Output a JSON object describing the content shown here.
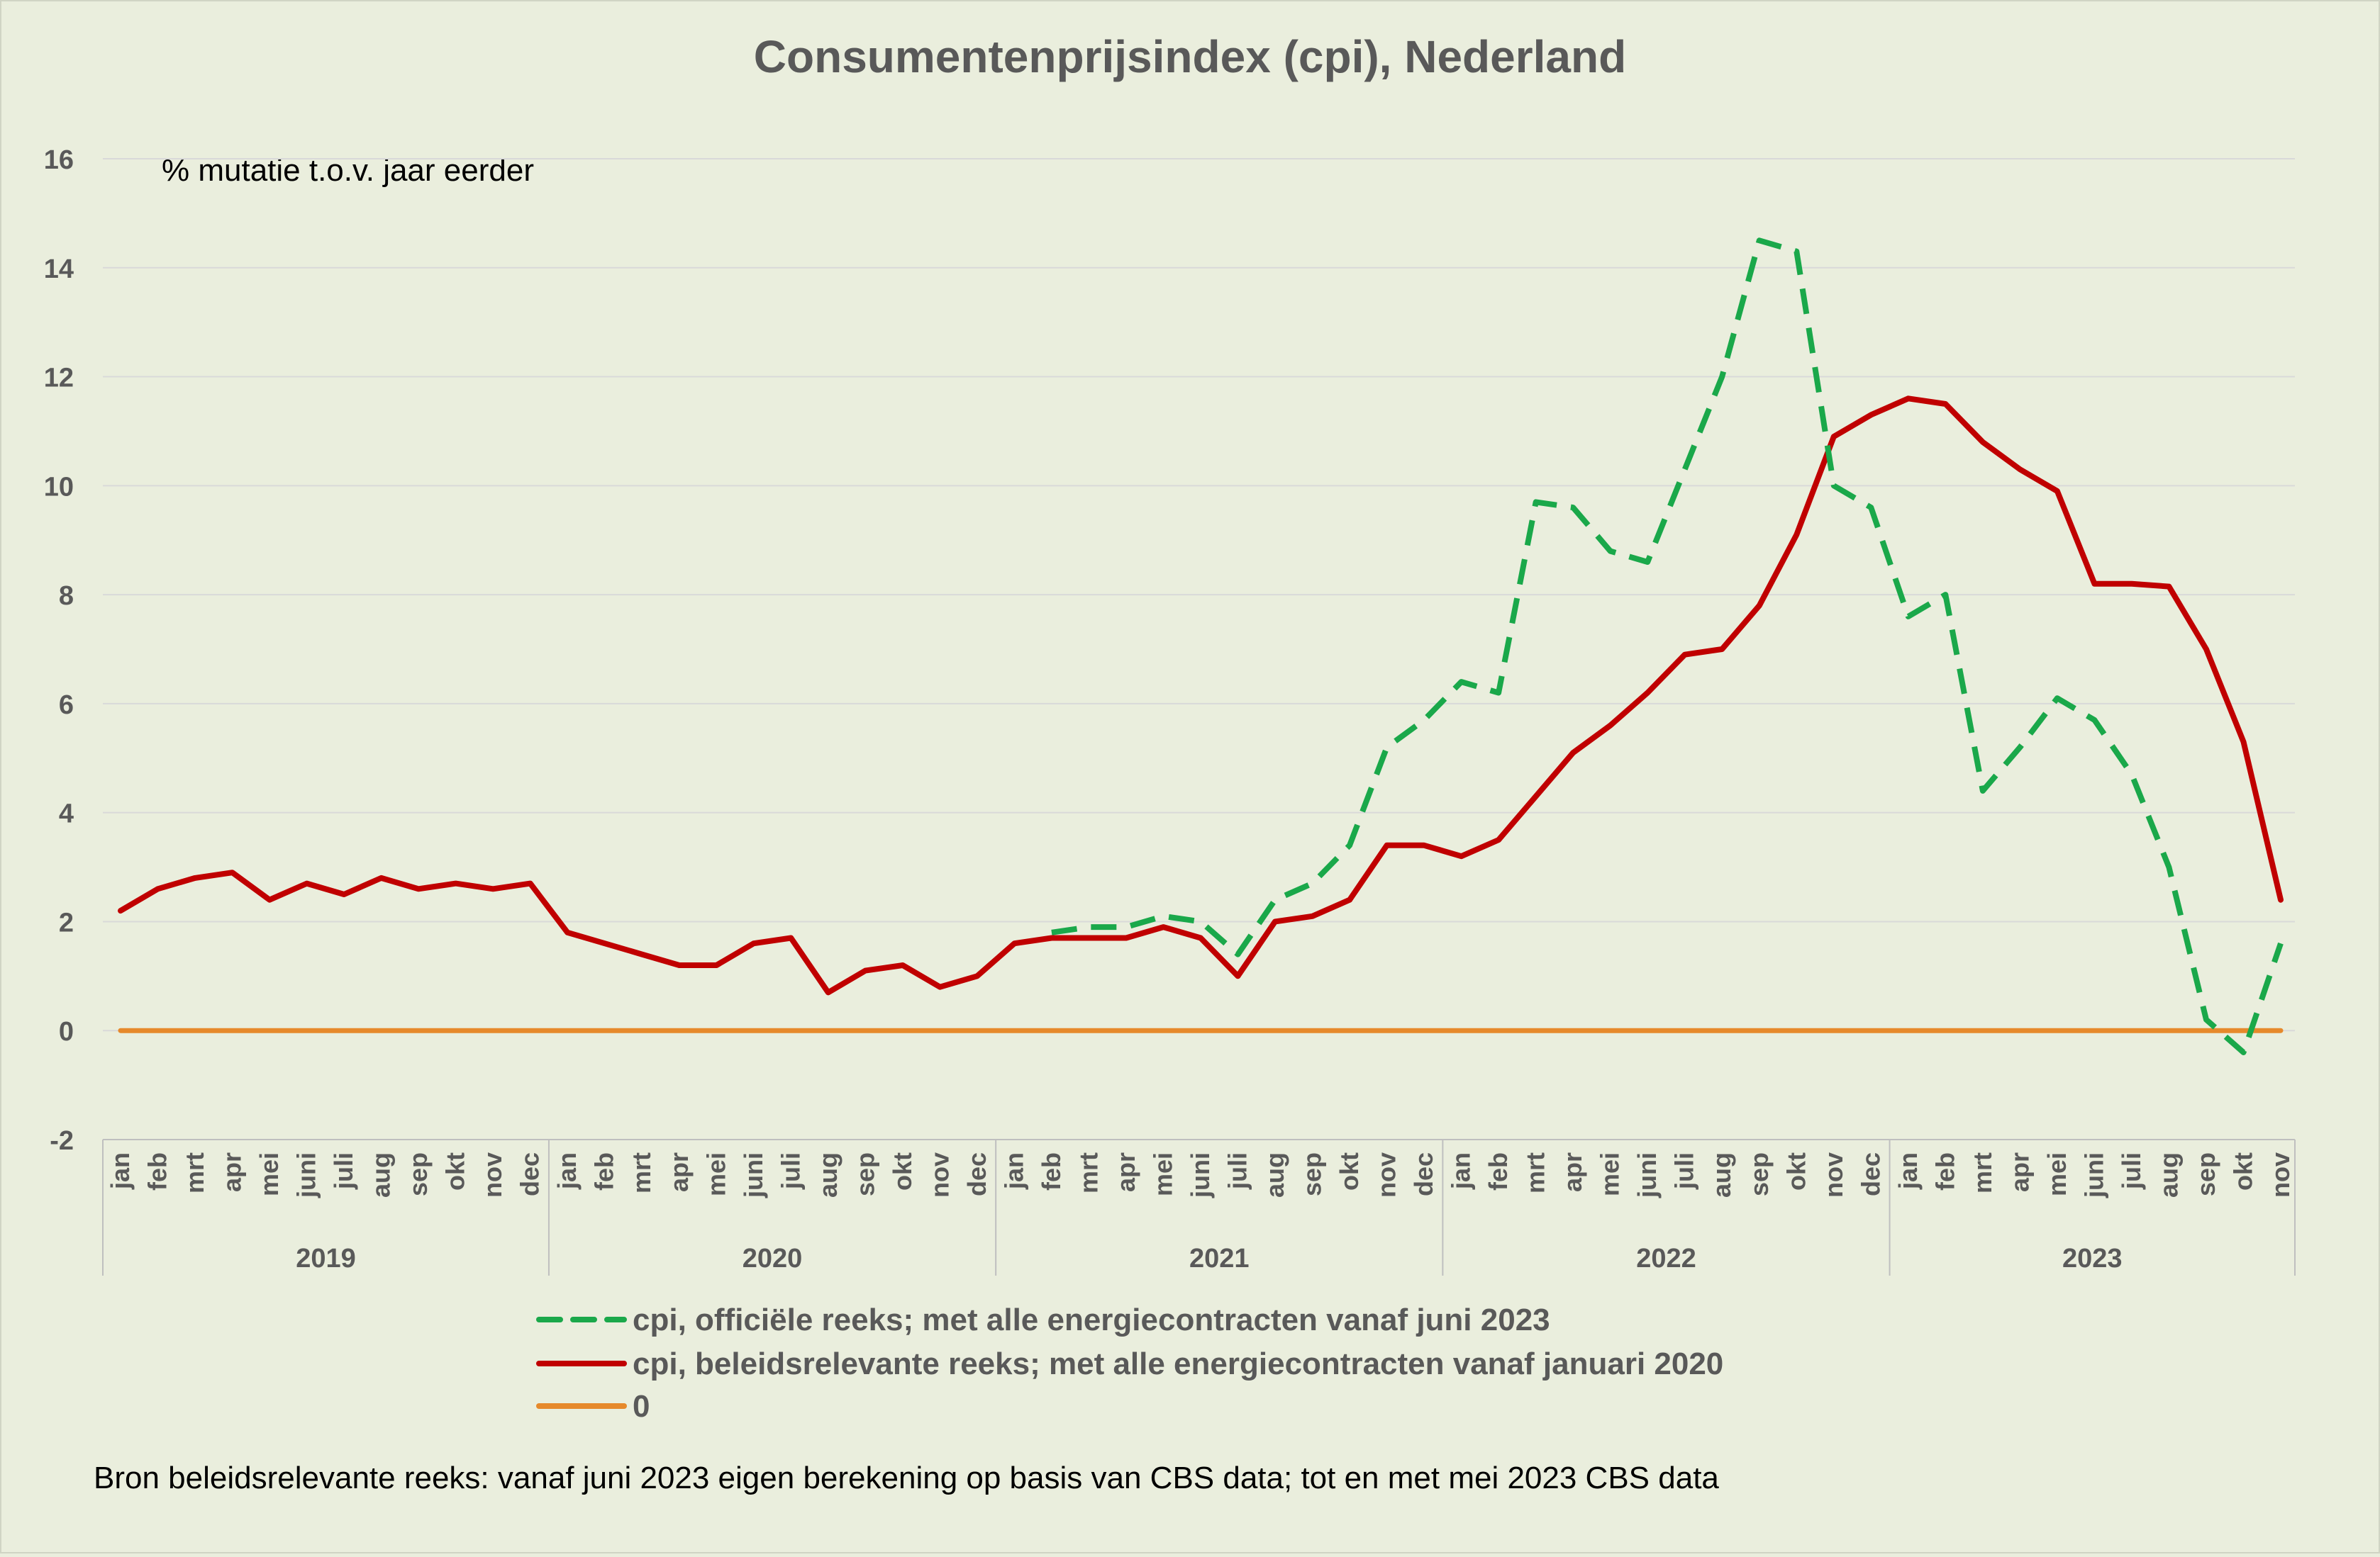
{
  "chart_data": {
    "type": "line",
    "title": "Consumentenprijsindex (cpi), Nederland",
    "annotation": "% mutatie t.o.v. jaar eerder",
    "footnote": "Bron beleidsrelevante reeks: vanaf juni 2023 eigen berekening op basis van CBS data; tot en met mei 2023 CBS data",
    "xlabel": "",
    "ylabel": "",
    "ylim": [
      -2,
      16
    ],
    "yticks": [
      -2,
      0,
      2,
      4,
      6,
      8,
      10,
      12,
      14,
      16
    ],
    "grid": true,
    "legend_position": "bottom",
    "years": [
      "2019",
      "2020",
      "2021",
      "2022",
      "2023"
    ],
    "months_per_year": [
      [
        "jan",
        "feb",
        "mrt",
        "apr",
        "mei",
        "juni",
        "juli",
        "aug",
        "sep",
        "okt",
        "nov",
        "dec"
      ],
      [
        "jan",
        "feb",
        "mrt",
        "apr",
        "mei",
        "juni",
        "juli",
        "aug",
        "sep",
        "okt",
        "nov",
        "dec"
      ],
      [
        "jan",
        "feb",
        "mrt",
        "apr",
        "mei",
        "juni",
        "juli",
        "aug",
        "sep",
        "okt",
        "nov",
        "dec"
      ],
      [
        "jan",
        "feb",
        "mrt",
        "apr",
        "mei",
        "juni",
        "juli",
        "aug",
        "sep",
        "okt",
        "nov",
        "dec"
      ],
      [
        "jan",
        "feb",
        "mrt",
        "apr",
        "mei",
        "juni",
        "juli",
        "aug",
        "sep",
        "okt",
        "nov"
      ]
    ],
    "series": [
      {
        "name": "cpi, officiële reeks; met alle energiecontracten vanaf juni 2023",
        "color": "#1aa84a",
        "style": "dashed",
        "start_index": 25,
        "values": [
          1.8,
          1.9,
          1.9,
          2.1,
          2.0,
          1.4,
          2.4,
          2.7,
          3.4,
          5.2,
          5.7,
          6.4,
          6.2,
          9.7,
          9.6,
          8.8,
          8.6,
          10.3,
          12.0,
          14.5,
          14.3,
          10.0,
          9.6,
          7.6,
          8.0,
          4.4,
          5.2,
          6.1,
          5.7,
          4.7,
          3.0,
          0.2,
          -0.4,
          1.6
        ]
      },
      {
        "name": "cpi, beleidsrelevante reeks; met alle energiecontracten vanaf januari 2020",
        "color": "#c00000",
        "style": "solid",
        "start_index": 0,
        "values": [
          2.2,
          2.6,
          2.8,
          2.9,
          2.4,
          2.7,
          2.5,
          2.8,
          2.6,
          2.7,
          2.6,
          2.7,
          1.8,
          1.6,
          1.4,
          1.2,
          1.2,
          1.6,
          1.7,
          0.7,
          1.1,
          1.2,
          0.8,
          1.0,
          1.6,
          1.7,
          1.7,
          1.7,
          1.9,
          1.7,
          1.0,
          2.0,
          2.1,
          2.4,
          3.4,
          3.4,
          3.2,
          3.5,
          4.3,
          5.1,
          5.6,
          6.2,
          6.9,
          7.0,
          7.8,
          9.1,
          10.9,
          11.3,
          11.6,
          11.5,
          10.8,
          10.3,
          9.9,
          8.2,
          8.2,
          8.15,
          7.0,
          5.3,
          2.4
        ]
      },
      {
        "name": "0",
        "color": "#e6892b",
        "style": "solid",
        "start_index": 0,
        "values": [
          0,
          0,
          0,
          0,
          0,
          0,
          0,
          0,
          0,
          0,
          0,
          0,
          0,
          0,
          0,
          0,
          0,
          0,
          0,
          0,
          0,
          0,
          0,
          0,
          0,
          0,
          0,
          0,
          0,
          0,
          0,
          0,
          0,
          0,
          0,
          0,
          0,
          0,
          0,
          0,
          0,
          0,
          0,
          0,
          0,
          0,
          0,
          0,
          0,
          0,
          0,
          0,
          0,
          0,
          0,
          0,
          0,
          0,
          0
        ]
      }
    ]
  },
  "colors": {
    "background": "#eaeedd",
    "text": "#595959",
    "gridline": "#d9d9d9",
    "axis": "#bfbfbf"
  }
}
